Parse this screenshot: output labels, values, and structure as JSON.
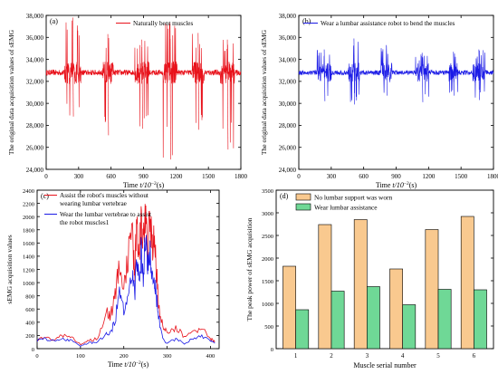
{
  "chart_data": [
    {
      "panel_label": "(a)",
      "type": "line",
      "xlabel_prefix": "Time ",
      "xlabel_unit": "t/10",
      "xlabel_exp": "−2",
      "xlabel_suffix": "(s)",
      "ylabel": "The original data acquisition values of sEMG",
      "xlim": [
        0,
        1800
      ],
      "ylim": [
        24000,
        38000
      ],
      "xticks": [
        "0",
        "300",
        "600",
        "900",
        "1200",
        "1500",
        "1800"
      ],
      "yticks": [
        "24,000",
        "26,000",
        "28,000",
        "30,000",
        "32,000",
        "34,000",
        "36,000",
        "38,000"
      ],
      "legend_position": "top-right",
      "series": [
        {
          "name": "Naturally bent muscles",
          "color": "#e8121b",
          "baseline": 32800,
          "noise": 260
        }
      ],
      "bursts": [
        {
          "x": [
            170,
            320
          ],
          "max": 37800,
          "min": 28800
        },
        {
          "x": [
            520,
            620
          ],
          "max": 36300,
          "min": 27100
        },
        {
          "x": [
            820,
            950
          ],
          "max": 35800,
          "min": 27700
        },
        {
          "x": [
            1080,
            1210
          ],
          "max": 37300,
          "min": 24900
        },
        {
          "x": [
            1350,
            1460
          ],
          "max": 36400,
          "min": 27600
        },
        {
          "x": [
            1610,
            1740
          ],
          "max": 35800,
          "min": 25800
        }
      ]
    },
    {
      "panel_label": "(b)",
      "type": "line",
      "xlabel_prefix": "Time ",
      "xlabel_unit": "t/10",
      "xlabel_exp": "−2",
      "xlabel_suffix": "(s)",
      "ylabel": "The original data acquisition values of sEMG",
      "xlim": [
        0,
        1800
      ],
      "ylim": [
        24000,
        38000
      ],
      "xticks": [
        "0",
        "300",
        "600",
        "900",
        "1200",
        "1500",
        "1800"
      ],
      "yticks": [
        "24,000",
        "26,000",
        "28,000",
        "30,000",
        "32,000",
        "34,000",
        "36,000",
        "38,000"
      ],
      "legend_position": "top-right",
      "series": [
        {
          "name": "Wear a lumbar assistance robot to bend the muscles",
          "color": "#1a1ae6",
          "baseline": 32800,
          "noise": 220
        }
      ],
      "bursts": [
        {
          "x": [
            170,
            300
          ],
          "max": 34900,
          "min": 30200
        },
        {
          "x": [
            460,
            560
          ],
          "max": 35900,
          "min": 29900
        },
        {
          "x": [
            760,
            860
          ],
          "max": 35300,
          "min": 30700
        },
        {
          "x": [
            1080,
            1200
          ],
          "max": 34600,
          "min": 30100
        },
        {
          "x": [
            1390,
            1470
          ],
          "max": 34700,
          "min": 30700
        },
        {
          "x": [
            1610,
            1720
          ],
          "max": 34900,
          "min": 30300
        }
      ]
    },
    {
      "panel_label": "(c)",
      "type": "line",
      "xlabel_prefix": "Time ",
      "xlabel_unit": "t/10",
      "xlabel_exp": "−2",
      "xlabel_suffix": "(s)",
      "ylabel": "sEMG acquisition values",
      "xlim": [
        0,
        420
      ],
      "ylim": [
        0,
        2400
      ],
      "xticks": [
        "0",
        "100",
        "200",
        "300",
        "400"
      ],
      "yticks": [
        "0",
        "200",
        "400",
        "600",
        "800",
        "1000",
        "1200",
        "1400",
        "1600",
        "1800",
        "2000",
        "2200",
        "2400"
      ],
      "legend_position": "top-left",
      "series": [
        {
          "name_lines": [
            "Assist the robot's muscles without",
            "wearing lumbar vertebrae"
          ],
          "color": "#e8121b",
          "x": [
            0,
            20,
            40,
            60,
            80,
            100,
            120,
            140,
            160,
            170,
            180,
            190,
            200,
            210,
            220,
            225,
            230,
            235,
            240,
            245,
            250,
            255,
            260,
            265,
            270,
            275,
            280,
            290,
            300,
            320,
            340,
            360,
            380,
            400,
            410
          ],
          "y": [
            140,
            170,
            130,
            200,
            160,
            70,
            120,
            160,
            560,
            500,
            820,
            1350,
            900,
            1400,
            1750,
            1100,
            1900,
            1300,
            2050,
            1600,
            1950,
            1450,
            2000,
            1600,
            1650,
            1200,
            700,
            350,
            260,
            320,
            180,
            240,
            320,
            150,
            100
          ]
        },
        {
          "name_lines": [
            "Wear the lumbar vertebrae to assist",
            "the robot muscles1"
          ],
          "color": "#1a1ae6",
          "x": [
            0,
            20,
            40,
            60,
            80,
            100,
            120,
            140,
            160,
            170,
            180,
            190,
            200,
            210,
            220,
            225,
            230,
            235,
            240,
            245,
            250,
            255,
            260,
            265,
            270,
            275,
            280,
            290,
            300,
            320,
            340,
            360,
            380,
            400,
            410
          ],
          "y": [
            130,
            150,
            110,
            150,
            120,
            40,
            90,
            100,
            220,
            260,
            420,
            900,
            550,
            780,
            1200,
            800,
            1350,
            1000,
            1450,
            1100,
            1600,
            1200,
            1500,
            1150,
            1100,
            800,
            500,
            150,
            80,
            150,
            70,
            150,
            180,
            120,
            80
          ]
        }
      ]
    },
    {
      "panel_label": "(d)",
      "type": "bar",
      "xlabel": "Muscle serial number",
      "ylabel": "The peak power of sEMG acquisition",
      "ylim": [
        0,
        3500
      ],
      "yticks": [
        "0",
        "500",
        "1000",
        "1500",
        "2000",
        "2500",
        "3000",
        "3500"
      ],
      "categories": [
        "1",
        "2",
        "3",
        "4",
        "5",
        "6"
      ],
      "legend_position": "top-left",
      "series": [
        {
          "name": "No lumbar support was worn",
          "color": "#f9c98f",
          "values": [
            1820,
            2740,
            2850,
            1760,
            2630,
            2920
          ]
        },
        {
          "name": "Wear lumbar assistance",
          "color": "#6fd896",
          "values": [
            860,
            1270,
            1370,
            970,
            1310,
            1300
          ]
        }
      ]
    }
  ]
}
